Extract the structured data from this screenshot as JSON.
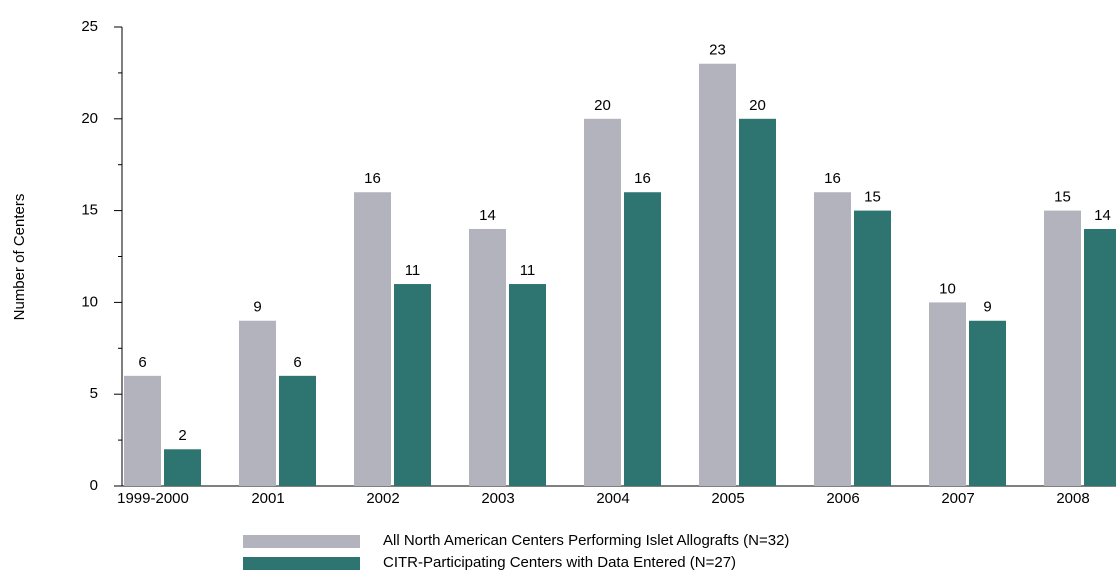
{
  "chart_data": {
    "type": "bar",
    "y_label": "Number of Centers",
    "categories": [
      "1999-2000",
      "2001",
      "2002",
      "2003",
      "2004",
      "2005",
      "2006",
      "2007",
      "2008"
    ],
    "series": [
      {
        "name": "All North American Centers Performing Islet Allografts (N=32)",
        "color": "#b3b3bd",
        "values": [
          6,
          9,
          16,
          14,
          20,
          23,
          16,
          10,
          15
        ]
      },
      {
        "name": "CITR-Participating Centers with Data Entered (N=27)",
        "color": "#2e7470",
        "values": [
          2,
          6,
          11,
          11,
          16,
          20,
          15,
          9,
          14
        ]
      }
    ],
    "ylim": [
      0,
      25
    ],
    "yticks": [
      0,
      5,
      10,
      15,
      20,
      25
    ]
  }
}
